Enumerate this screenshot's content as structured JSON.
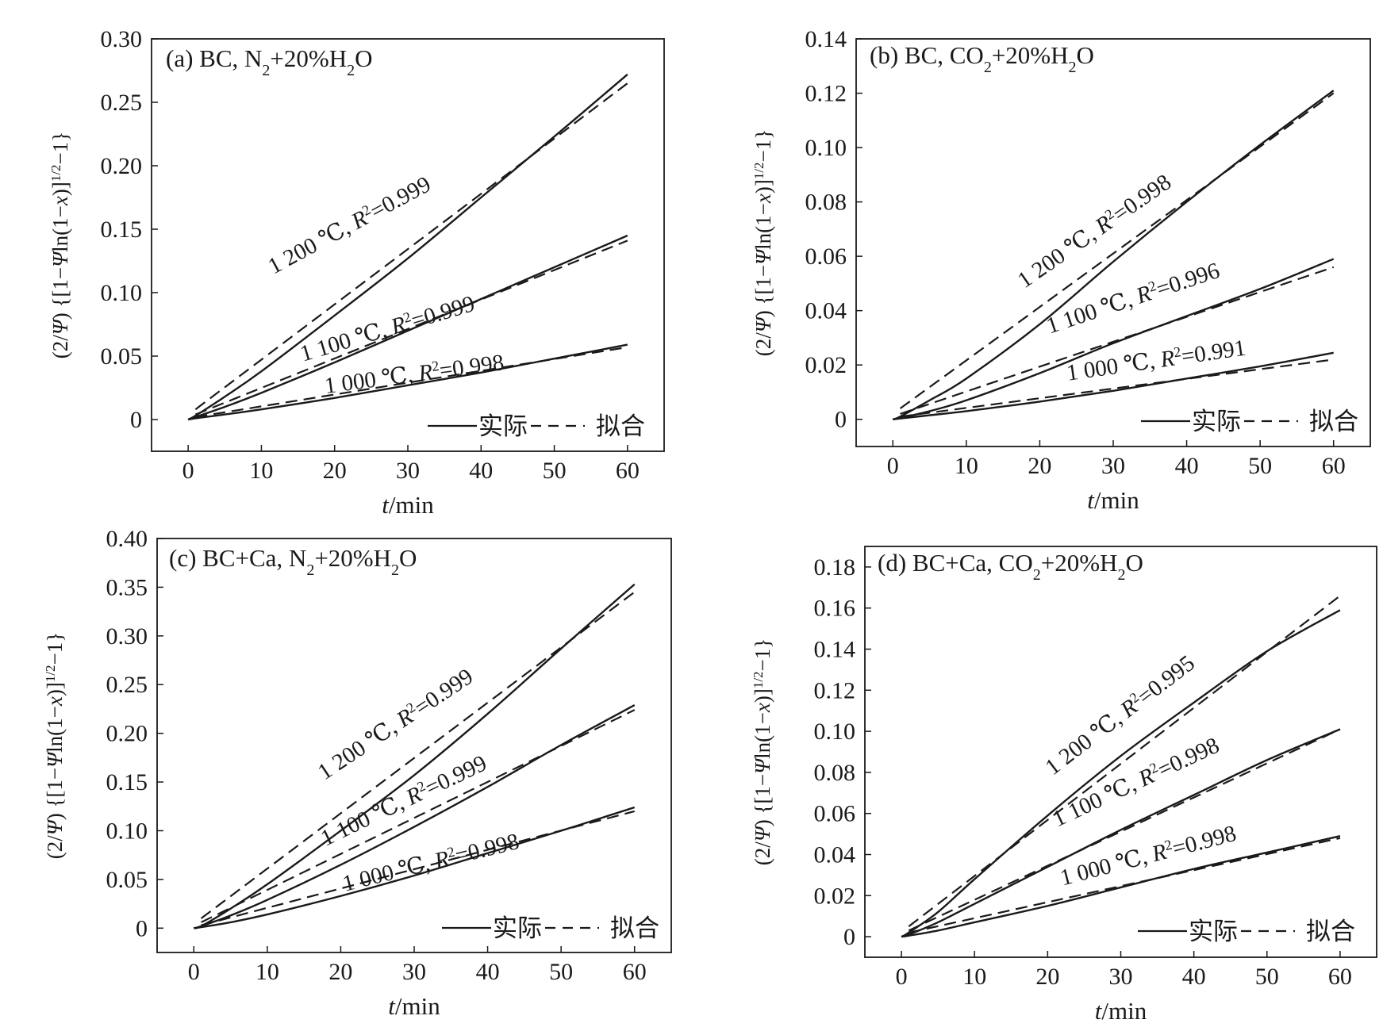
{
  "figure": {
    "panels": [
      {
        "id": "a",
        "title": "(a) BC, N₂+20%H₂O",
        "xlabel": "t/min",
        "ylabel": "(2/Ψ){[1−Ψln(1−x)]^1/2−1}",
        "legend_actual": "实际",
        "legend_fit": "拟合",
        "chart_data": {
          "type": "line",
          "title": "(a) BC, N₂+20%H₂O",
          "xlabel": "t/min",
          "ylabel": "(2/Ψ){[1−Ψln(1−x)]^1/2−1}",
          "xlim": [
            -5,
            65
          ],
          "ylim": [
            -0.025,
            0.3
          ],
          "xticks": [
            0,
            10,
            20,
            30,
            40,
            50,
            60
          ],
          "yticks": [
            0,
            0.05,
            0.1,
            0.15,
            0.2,
            0.25,
            0.3
          ],
          "ytick_labels": [
            "0",
            "0.05",
            "0.10",
            "0.15",
            "0.20",
            "0.25",
            "0.30"
          ],
          "legend": {
            "position": "bottom-right",
            "entries": [
              "实际",
              "拟合"
            ]
          },
          "series": [
            {
              "name": "1 200 ℃, R²=0.999",
              "temperature": "1 200 ℃",
              "r2": "0.999",
              "actual": {
                "x": [
                  0,
                  1,
                  5,
                  10,
                  20,
                  30,
                  40,
                  50,
                  60
                ],
                "y": [
                  0,
                  0.003,
                  0.018,
                  0.038,
                  0.082,
                  0.127,
                  0.175,
                  0.223,
                  0.272
                ]
              },
              "fit": {
                "x": [
                  1,
                  60
                ],
                "y": [
                  0.008,
                  0.265
                ]
              }
            },
            {
              "name": "1 100 ℃, R²=0.999",
              "temperature": "1 100 ℃",
              "r2": "0.999",
              "actual": {
                "x": [
                  0,
                  1,
                  5,
                  10,
                  20,
                  30,
                  40,
                  50,
                  60
                ],
                "y": [
                  0,
                  0.002,
                  0.01,
                  0.021,
                  0.045,
                  0.07,
                  0.095,
                  0.12,
                  0.145
                ]
              },
              "fit": {
                "x": [
                  1,
                  60
                ],
                "y": [
                  0.004,
                  0.141
                ]
              }
            },
            {
              "name": "1 000 ℃, R²=0.998",
              "temperature": "1 000 ℃",
              "r2": "0.998",
              "actual": {
                "x": [
                  0,
                  1,
                  5,
                  10,
                  20,
                  30,
                  40,
                  50,
                  60
                ],
                "y": [
                  0,
                  0.001,
                  0.004,
                  0.008,
                  0.017,
                  0.027,
                  0.037,
                  0.048,
                  0.059
                ]
              },
              "fit": {
                "x": [
                  1,
                  60
                ],
                "y": [
                  0.002,
                  0.057
                ]
              }
            }
          ],
          "annotations": [
            {
              "temp": "1 200 ℃, ",
              "r2_val": "=0.999",
              "angle": -28.3,
              "x": 22.5,
              "y": 0.148
            },
            {
              "temp": "1 100 ℃, ",
              "r2_val": "=0.999",
              "angle": -16.6,
              "x": 27.5,
              "y": 0.066
            },
            {
              "temp": "1 000 ℃, ",
              "r2_val": "=0.998",
              "angle": -7.6,
              "x": 31.0,
              "y": 0.03
            }
          ]
        }
      },
      {
        "id": "b",
        "title": "(b) BC, CO₂+20%H₂O",
        "xlabel": "t/min",
        "ylabel": "(2/Ψ){[1−Ψln(1−x)]^1/2−1}",
        "legend_actual": "实际",
        "legend_fit": "拟合",
        "chart_data": {
          "type": "line",
          "title": "(b) BC, CO₂+20%H₂O",
          "xlabel": "t/min",
          "ylabel": "(2/Ψ){[1−Ψln(1−x)]^1/2−1}",
          "xlim": [
            -5,
            65
          ],
          "ylim": [
            -0.01,
            0.14
          ],
          "xticks": [
            0,
            10,
            20,
            30,
            40,
            50,
            60
          ],
          "yticks": [
            0,
            0.02,
            0.04,
            0.06,
            0.08,
            0.1,
            0.12,
            0.14
          ],
          "ytick_labels": [
            "0",
            "0.02",
            "0.04",
            "0.06",
            "0.08",
            "0.10",
            "0.12",
            "0.14"
          ],
          "legend": {
            "position": "bottom-right",
            "entries": [
              "实际",
              "拟合"
            ]
          },
          "series": [
            {
              "name": "1 200 ℃, R²=0.998",
              "temperature": "1 200 ℃",
              "r2": "0.998",
              "actual": {
                "x": [
                  0,
                  1,
                  5,
                  10,
                  20,
                  30,
                  40,
                  50,
                  60
                ],
                "y": [
                  0,
                  0.001,
                  0.007,
                  0.015,
                  0.035,
                  0.058,
                  0.08,
                  0.101,
                  0.121
                ]
              },
              "fit": {
                "x": [
                  1,
                  60
                ],
                "y": [
                  0.004,
                  0.12
                ]
              }
            },
            {
              "name": "1 100 ℃, R²=0.996",
              "temperature": "1 100 ℃",
              "r2": "0.996",
              "actual": {
                "x": [
                  0,
                  1,
                  5,
                  10,
                  20,
                  30,
                  40,
                  50,
                  60
                ],
                "y": [
                  0,
                  0.0005,
                  0.003,
                  0.007,
                  0.017,
                  0.028,
                  0.038,
                  0.048,
                  0.059
                ]
              },
              "fit": {
                "x": [
                  1,
                  60
                ],
                "y": [
                  0.002,
                  0.056
                ]
              }
            },
            {
              "name": "1 000 ℃, R²=0.991",
              "temperature": "1 000 ℃",
              "r2": "0.991",
              "actual": {
                "x": [
                  0,
                  1,
                  5,
                  10,
                  20,
                  30,
                  40,
                  50,
                  60
                ],
                "y": [
                  0,
                  0.0003,
                  0.0015,
                  0.003,
                  0.0065,
                  0.0105,
                  0.015,
                  0.0195,
                  0.0245
                ]
              },
              "fit": {
                "x": [
                  1,
                  60
                ],
                "y": [
                  0.001,
                  0.022
                ]
              }
            }
          ],
          "annotations": [
            {
              "temp": "1 200 ℃, ",
              "r2_val": "=0.998",
              "angle": -34.8,
              "x": 28.0,
              "y": 0.067
            },
            {
              "temp": "1 100 ℃, ",
              "r2_val": "=0.996",
              "angle": -18.4,
              "x": 33.0,
              "y": 0.042
            },
            {
              "temp": "1 000 ℃, ",
              "r2_val": "=0.991",
              "angle": -8.2,
              "x": 36.0,
              "y": 0.019
            }
          ]
        }
      },
      {
        "id": "c",
        "title": "(c) BC+Ca, N₂+20%H₂O",
        "xlabel": "t/min",
        "ylabel": "(2/Ψ){[1−Ψln(1−x)]^1/2−1}",
        "legend_actual": "实际",
        "legend_fit": "拟合",
        "chart_data": {
          "type": "line",
          "title": "(c) BC+Ca, N₂+20%H₂O",
          "xlabel": "t/min",
          "ylabel": "(2/Ψ){[1−Ψln(1−x)]^1/2−1}",
          "xlim": [
            -5,
            65
          ],
          "ylim": [
            -0.025,
            0.4
          ],
          "xticks": [
            0,
            10,
            20,
            30,
            40,
            50,
            60
          ],
          "yticks": [
            0,
            0.05,
            0.1,
            0.15,
            0.2,
            0.25,
            0.3,
            0.35,
            0.4
          ],
          "ytick_labels": [
            "0",
            "0.05",
            "0.10",
            "0.15",
            "0.20",
            "0.25",
            "0.30",
            "0.35",
            "0.40"
          ],
          "legend": {
            "position": "bottom-right",
            "entries": [
              "实际",
              "拟合"
            ]
          },
          "series": [
            {
              "name": "1 200 ℃, R²=0.999",
              "temperature": "1 200 ℃",
              "r2": "0.999",
              "actual": {
                "x": [
                  0,
                  1,
                  5,
                  10,
                  20,
                  30,
                  40,
                  50,
                  60
                ],
                "y": [
                  0,
                  0.002,
                  0.02,
                  0.045,
                  0.1,
                  0.157,
                  0.22,
                  0.287,
                  0.353
                ]
              },
              "fit": {
                "x": [
                  1,
                  60
                ],
                "y": [
                  0.01,
                  0.345
                ]
              }
            },
            {
              "name": "1 100 ℃, R²=0.999",
              "temperature": "1 100 ℃",
              "r2": "0.999",
              "actual": {
                "x": [
                  0,
                  1,
                  5,
                  10,
                  20,
                  30,
                  40,
                  50,
                  60
                ],
                "y": [
                  0,
                  0.002,
                  0.013,
                  0.029,
                  0.065,
                  0.104,
                  0.145,
                  0.188,
                  0.229
                ]
              },
              "fit": {
                "x": [
                  1,
                  60
                ],
                "y": [
                  0.006,
                  0.224
                ]
              }
            },
            {
              "name": "1 000 ℃, R²=0.998",
              "temperature": "1 000 ℃",
              "r2": "0.998",
              "actual": {
                "x": [
                  0,
                  1,
                  5,
                  10,
                  20,
                  30,
                  40,
                  50,
                  60
                ],
                "y": [
                  0,
                  0.001,
                  0.006,
                  0.014,
                  0.033,
                  0.054,
                  0.077,
                  0.1,
                  0.124
                ]
              },
              "fit": {
                "x": [
                  1,
                  60
                ],
                "y": [
                  0.003,
                  0.12
                ]
              }
            }
          ],
          "annotations": [
            {
              "temp": "1 200 ℃, ",
              "r2_val": "=0.999",
              "angle": -33.7,
              "x": 28.0,
              "y": 0.203
            },
            {
              "temp": "1 100 ℃, ",
              "r2_val": "=0.999",
              "angle": -25.6,
              "x": 29.0,
              "y": 0.124
            },
            {
              "temp": "1 000 ℃, ",
              "r2_val": "=0.998",
              "angle": -13.9,
              "x": 32.5,
              "y": 0.06
            }
          ]
        }
      },
      {
        "id": "d",
        "title": "(d) BC+Ca, CO₂+20%H₂O",
        "xlabel": "t/min",
        "ylabel": "(2/Ψ){[1−Ψln(1−x)]^1/2−1}",
        "legend_actual": "实际",
        "legend_fit": "拟合",
        "chart_data": {
          "type": "line",
          "title": "(d) BC+Ca, CO₂+20%H₂O",
          "xlabel": "t/min",
          "ylabel": "(2/Ψ){[1−Ψln(1−x)]^1/2−1}",
          "xlim": [
            -5,
            65
          ],
          "ylim": [
            -0.01,
            0.19
          ],
          "xticks": [
            0,
            10,
            20,
            30,
            40,
            50,
            60
          ],
          "yticks": [
            0,
            0.02,
            0.04,
            0.06,
            0.08,
            0.1,
            0.12,
            0.14,
            0.16,
            0.18
          ],
          "ytick_labels": [
            "0",
            "0.02",
            "0.04",
            "0.06",
            "0.08",
            "0.10",
            "0.12",
            "0.14",
            "0.16",
            "0.18"
          ],
          "legend": {
            "position": "bottom-right",
            "entries": [
              "实际",
              "拟合"
            ]
          },
          "series": [
            {
              "name": "1 200 ℃, R²=0.995",
              "temperature": "1 200 ℃",
              "r2": "0.995",
              "actual": {
                "x": [
                  0,
                  1,
                  5,
                  10,
                  20,
                  30,
                  40,
                  50,
                  60
                ],
                "y": [
                  0,
                  0.002,
                  0.012,
                  0.028,
                  0.059,
                  0.088,
                  0.114,
                  0.139,
                  0.159
                ]
              },
              "fit": {
                "x": [
                  1,
                  60
                ],
                "y": [
                  0.005,
                  0.166
                ]
              }
            },
            {
              "name": "1 100 ℃, R²=0.998",
              "temperature": "1 100 ℃",
              "r2": "0.998",
              "actual": {
                "x": [
                  0,
                  1,
                  5,
                  10,
                  20,
                  30,
                  40,
                  50,
                  60
                ],
                "y": [
                  0,
                  0.001,
                  0.007,
                  0.016,
                  0.034,
                  0.052,
                  0.069,
                  0.086,
                  0.101
                ]
              },
              "fit": {
                "x": [
                  1,
                  60
                ],
                "y": [
                  0.003,
                  0.101
                ]
              }
            },
            {
              "name": "1 000 ℃, R²=0.998",
              "temperature": "1 000 ℃",
              "r2": "0.998",
              "actual": {
                "x": [
                  0,
                  1,
                  5,
                  10,
                  20,
                  30,
                  40,
                  50,
                  60
                ],
                "y": [
                  0,
                  0.0005,
                  0.003,
                  0.007,
                  0.015,
                  0.024,
                  0.033,
                  0.041,
                  0.049
                ]
              },
              "fit": {
                "x": [
                  1,
                  60
                ],
                "y": [
                  0.002,
                  0.048
                ]
              }
            }
          ],
          "annotations": [
            {
              "temp": "1 200 ℃, ",
              "r2_val": "=0.995",
              "angle": -37.4,
              "x": 30.5,
              "y": 0.105
            },
            {
              "temp": "1 100 ℃, ",
              "r2_val": "=0.998",
              "angle": -25.1,
              "x": 32.5,
              "y": 0.072
            },
            {
              "temp": "1 000 ℃, ",
              "r2_val": "=0.998",
              "angle": -14.6,
              "x": 34.0,
              "y": 0.036
            }
          ]
        }
      }
    ]
  }
}
